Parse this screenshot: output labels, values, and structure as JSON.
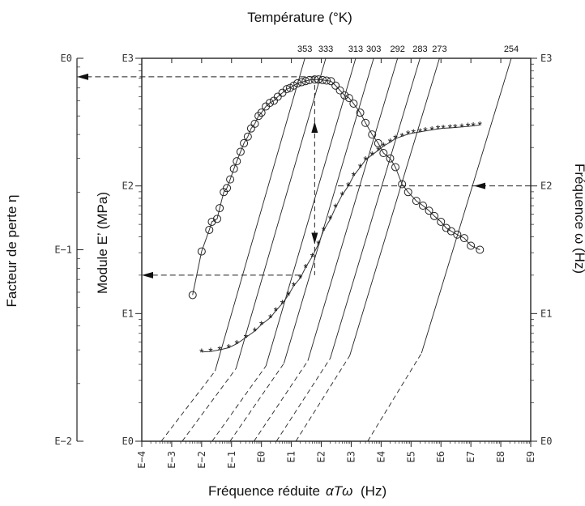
{
  "chart_data": {
    "type": "scatter",
    "title": "Température (°K)",
    "xlabel": "Fréquence réduite",
    "xlabel_symbol": "αTω",
    "xlabel_unit": "(Hz)",
    "ylabel_left": "Module E’ (MPa)",
    "ylabel_far_left": "Facteur de perte η",
    "ylabel_right": "Fréquence ω (Hz)",
    "x_scale": "log",
    "x_ticks": [
      "E−4",
      "E−3",
      "E−2",
      "E−1",
      "E0",
      "E1",
      "E2",
      "E3",
      "E4",
      "E5",
      "E6",
      "E7",
      "E8",
      "E9"
    ],
    "xlim": [
      0.0001,
      1000000000.0
    ],
    "modulus_axis": {
      "scale": "log",
      "ylim": [
        1,
        1000
      ],
      "ticks": [
        "E0",
        "E1",
        "E2",
        "E3"
      ]
    },
    "loss_axis": {
      "scale": "log",
      "ylim": [
        0.01,
        1
      ],
      "ticks": [
        "E−2",
        "E−1",
        "E0"
      ]
    },
    "frequency_axis": {
      "scale": "log",
      "ylim": [
        1,
        1000
      ],
      "ticks": [
        "E0",
        "E1",
        "E2",
        "E3"
      ]
    },
    "temperatures": [
      "353",
      "333",
      "313",
      "303",
      "292",
      "283",
      "273",
      "254"
    ],
    "isotherms": [
      {
        "label": "353",
        "log_shift": -2.6
      },
      {
        "label": "333",
        "log_shift": -1.9
      },
      {
        "label": "313",
        "log_shift": -0.9
      },
      {
        "label": "303",
        "log_shift": -0.3
      },
      {
        "label": "292",
        "log_shift": 0.5
      },
      {
        "label": "283",
        "log_shift": 1.25
      },
      {
        "label": "273",
        "log_shift": 1.9
      },
      {
        "label": "254",
        "log_shift": 4.3
      }
    ],
    "grid": false,
    "series": [
      {
        "marker": "circle",
        "x": [
          0.005,
          0.01,
          0.018,
          0.022,
          0.033,
          0.04,
          0.055,
          0.07,
          0.09,
          0.12,
          0.15,
          0.2,
          0.26,
          0.35,
          0.45,
          0.6,
          0.8,
          1.0,
          1.4,
          1.9,
          2.6,
          3.5,
          5,
          7,
          9,
          12,
          16,
          22,
          30,
          40,
          60,
          80,
          110,
          150,
          210,
          300,
          420,
          600,
          850,
          1200,
          2000,
          3000,
          5000,
          8000,
          12000,
          20000,
          30000,
          50000,
          80000,
          150000,
          250000,
          400000,
          600000,
          1000000,
          1500000,
          2200000,
          3500000,
          6000000,
          10000000,
          20000000
        ],
        "y": [
          0.058,
          0.098,
          0.127,
          0.14,
          0.145,
          0.165,
          0.2,
          0.21,
          0.233,
          0.265,
          0.29,
          0.325,
          0.36,
          0.39,
          0.43,
          0.455,
          0.5,
          0.52,
          0.56,
          0.585,
          0.6,
          0.63,
          0.66,
          0.69,
          0.7,
          0.72,
          0.74,
          0.75,
          0.76,
          0.77,
          0.775,
          0.775,
          0.77,
          0.765,
          0.76,
          0.72,
          0.68,
          0.64,
          0.62,
          0.58,
          0.52,
          0.46,
          0.4,
          0.36,
          0.32,
          0.3,
          0.27,
          0.22,
          0.2,
          0.18,
          0.17,
          0.16,
          0.15,
          0.14,
          0.13,
          0.125,
          0.12,
          0.115,
          0.105,
          0.1
        ]
      },
      {
        "marker": "asterisk",
        "x": [
          0.01,
          0.02,
          0.04,
          0.08,
          0.15,
          0.3,
          0.6,
          1,
          2,
          3,
          5,
          8,
          12,
          20,
          30,
          50,
          80,
          120,
          200,
          300,
          500,
          800,
          1200,
          2000,
          3000,
          5000,
          8000,
          12000,
          20000,
          30000,
          50000,
          80000,
          120000,
          200000,
          300000,
          500000,
          800000,
          1200000,
          2000000,
          3000000,
          5000000,
          8000000,
          12000000,
          20000000
        ],
        "y": [
          5,
          5.05,
          5.2,
          5.4,
          5.8,
          6.5,
          7.3,
          8.2,
          9.3,
          10.5,
          12,
          14,
          16.5,
          19,
          23,
          28,
          35,
          45,
          55,
          68,
          85,
          100,
          120,
          140,
          160,
          175,
          190,
          205,
          220,
          235,
          245,
          255,
          260,
          265,
          270,
          275,
          280,
          283,
          285,
          287,
          290,
          293,
          296,
          300
        ]
      }
    ],
    "annotations": [
      {
        "type": "arrow",
        "direction": "left",
        "from_axis": "modulus",
        "to_axis": "loss",
        "value": 800
      },
      {
        "type": "arrow",
        "direction": "left",
        "from_axis": "right",
        "to_axis": "modulus",
        "value": 100
      },
      {
        "type": "arrow",
        "direction": "left",
        "from_axis": "modulus",
        "to_axis": "loss",
        "value": 20
      }
    ]
  }
}
